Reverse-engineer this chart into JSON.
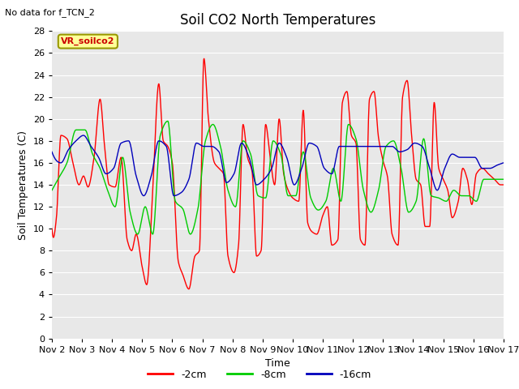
{
  "title": "Soil CO2 North Temperatures",
  "subtitle": "No data for f_TCN_2",
  "xlabel": "Time",
  "ylabel": "Soil Temperatures (C)",
  "legend_label": "VR_soilco2",
  "ylim": [
    0,
    28
  ],
  "yticks": [
    0,
    2,
    4,
    6,
    8,
    10,
    12,
    14,
    16,
    18,
    20,
    22,
    24,
    26,
    28
  ],
  "xtick_labels": [
    "Nov 2",
    "Nov 3",
    "Nov 4",
    "Nov 5",
    "Nov 6",
    "Nov 7",
    "Nov 8",
    "Nov 9",
    "Nov 10",
    "Nov 11",
    "Nov 12",
    "Nov 13",
    "Nov 14",
    "Nov 15",
    "Nov 16",
    "Nov 17"
  ],
  "line_colors": [
    "#ff0000",
    "#00cc00",
    "#0000bb"
  ],
  "line_labels": [
    "-2cm",
    "-8cm",
    "-16cm"
  ],
  "background_color": "#e8e8e8",
  "title_fontsize": 12,
  "axis_label_fontsize": 9,
  "tick_fontsize": 8,
  "legend_label_color": "#cc0000",
  "legend_box_face": "#ffff99",
  "legend_box_edge": "#999900"
}
